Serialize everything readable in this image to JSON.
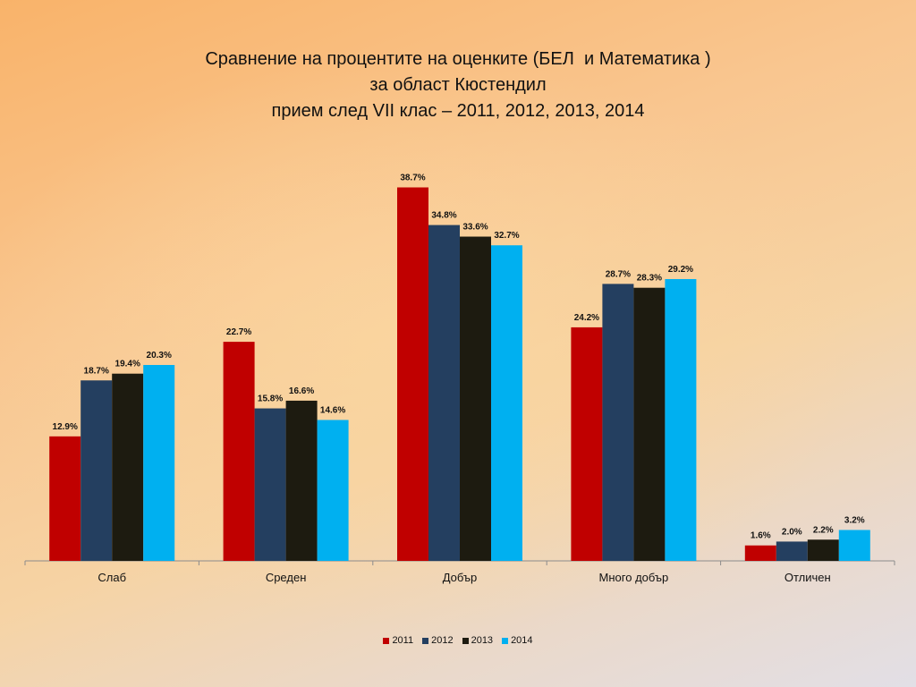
{
  "title": {
    "line1": "Сравнение на процентите на оценките (БЕЛ  и Математика )",
    "line2": "за област Кюстендил",
    "line3": "прием след VII клас – 2011, 2012, 2013, 2014"
  },
  "chart_data": {
    "type": "bar",
    "categories": [
      "Слаб",
      "Среден",
      "Добър",
      "Много добър",
      "Отличен"
    ],
    "series": [
      {
        "name": "2011",
        "color": "#c00000",
        "values": [
          12.9,
          22.7,
          38.7,
          24.2,
          1.6
        ],
        "labels": [
          "12.9%",
          "22.7%",
          "38.7%",
          "24.2%",
          "1.6%"
        ]
      },
      {
        "name": "2012",
        "color": "#243f60",
        "values": [
          18.7,
          15.8,
          34.8,
          28.7,
          2.0
        ],
        "labels": [
          "18.7%",
          "15.8%",
          "34.8%",
          "28.7%",
          "2.0%"
        ]
      },
      {
        "name": "2013",
        "color": "#1d1b10",
        "values": [
          19.4,
          16.6,
          33.6,
          28.3,
          2.2
        ],
        "labels": [
          "19.4%",
          "16.6%",
          "33.6%",
          "28.3%",
          "2.2%"
        ]
      },
      {
        "name": "2014",
        "color": "#00b0f0",
        "values": [
          20.3,
          14.6,
          32.7,
          29.2,
          3.2
        ],
        "labels": [
          "20.3%",
          "14.6%",
          "32.7%",
          "29.2%",
          "3.2%"
        ]
      }
    ],
    "ylim": [
      0,
      40
    ],
    "grid": false,
    "legend": "bottom"
  }
}
